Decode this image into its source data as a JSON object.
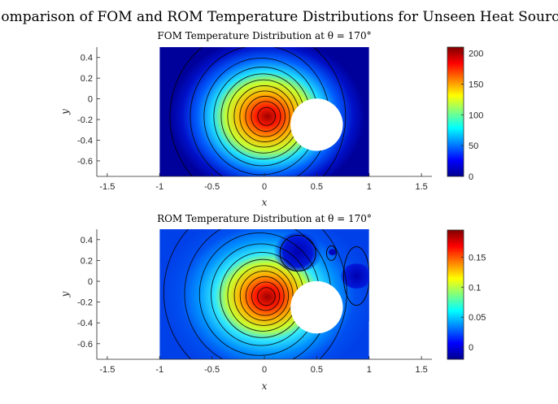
{
  "figure": {
    "suptitle": "Comparison of FOM and ROM Temperature Distributions for Unseen Heat Source"
  },
  "chart_data": [
    {
      "type": "heatmap",
      "title": "FOM Temperature Distribution at θ = 170°",
      "xlabel": "x",
      "ylabel": "y",
      "xlim": [
        -1.6,
        1.6
      ],
      "ylim": [
        -0.75,
        0.5
      ],
      "xticks": [
        "-1.5",
        "-1",
        "-0.5",
        "0",
        "0.5",
        "1",
        "1.5"
      ],
      "yticks": [
        "0.4",
        "0.2",
        "0",
        "-0.2",
        "-0.4",
        "-0.6"
      ],
      "domain": {
        "x": [
          -1,
          1
        ],
        "y": [
          -0.75,
          0.5
        ]
      },
      "hole": {
        "cx": 0.5,
        "cy": -0.25,
        "r": 0.25
      },
      "source": {
        "x": 0.03,
        "y": -0.17
      },
      "colorbar": {
        "min": 0,
        "max": 210,
        "ticks": [
          "0",
          "50",
          "100",
          "150",
          "200"
        ]
      },
      "colormap": "jet",
      "contours": true
    },
    {
      "type": "heatmap",
      "title": "ROM Temperature Distribution at θ = 170°",
      "xlabel": "x",
      "ylabel": "y",
      "xlim": [
        -1.6,
        1.6
      ],
      "ylim": [
        -0.75,
        0.5
      ],
      "xticks": [
        "-1.5",
        "-1",
        "-0.5",
        "0",
        "0.5",
        "1",
        "1.5"
      ],
      "yticks": [
        "0.4",
        "0.2",
        "0",
        "-0.2",
        "-0.4",
        "-0.6"
      ],
      "domain": {
        "x": [
          -1,
          1
        ],
        "y": [
          -0.75,
          0.5
        ]
      },
      "hole": {
        "cx": 0.5,
        "cy": -0.25,
        "r": 0.25
      },
      "source": {
        "x": 0.03,
        "y": -0.15
      },
      "colorbar": {
        "min": -0.02,
        "max": 0.195,
        "ticks": [
          "0",
          "0.05",
          "0.1",
          "0.15"
        ]
      },
      "colormap": "jet",
      "contours": true
    }
  ]
}
